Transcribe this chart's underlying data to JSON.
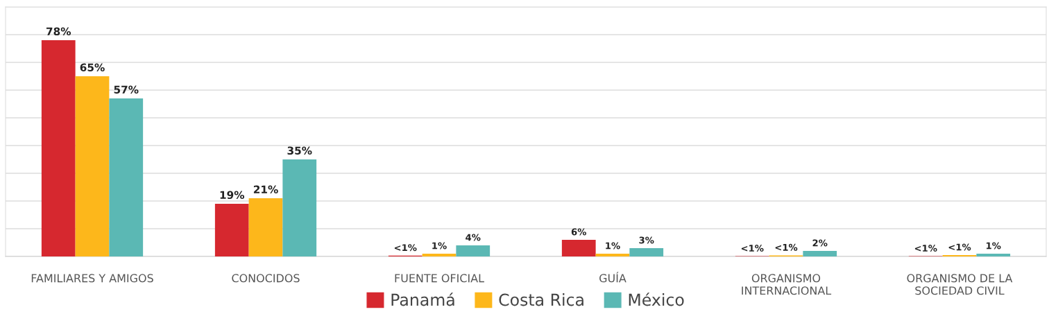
{
  "chart_data": {
    "type": "bar",
    "categories": [
      "FAMILIARES Y AMIGOS",
      "CONOCIDOS",
      "FUENTE OFICIAL",
      "GUÍA",
      "ORGANISMO\nINTERNACIONAL",
      "ORGANISMO DE LA\nSOCIEDAD CIVIL"
    ],
    "series": [
      {
        "name": "Panamá",
        "color": "#d6282f",
        "values": [
          78,
          19,
          0.3,
          6,
          0.1,
          0.1
        ],
        "value_labels": [
          "78%",
          "19%",
          "<1%",
          "6%",
          "<1%",
          "<1%"
        ]
      },
      {
        "name": "Costa Rica",
        "color": "#fdb71b",
        "values": [
          65,
          21,
          1,
          1,
          0.4,
          0.5
        ],
        "value_labels": [
          "65%",
          "21%",
          "1%",
          "1%",
          "<1%",
          "<1%"
        ]
      },
      {
        "name": "México",
        "color": "#5bb8b4",
        "values": [
          57,
          35,
          4,
          3,
          2,
          1
        ],
        "value_labels": [
          "57%",
          "35%",
          "4%",
          "3%",
          "2%",
          "1%"
        ]
      }
    ],
    "ylim": [
      0,
      90
    ],
    "yticks": [
      {
        "value": 0,
        "label": null
      },
      {
        "value": 10,
        "label": null
      },
      {
        "value": 20,
        "label": null
      },
      {
        "value": 30,
        "label": null
      },
      {
        "value": 40,
        "label": null
      },
      {
        "value": 50,
        "label": null
      },
      {
        "value": 60,
        "label": null
      },
      {
        "value": 70,
        "label": null
      },
      {
        "value": 80,
        "label": null
      },
      {
        "value": 90,
        "label": null
      }
    ],
    "tick_labels": "x",
    "grid": "y",
    "legend": "bottom"
  }
}
